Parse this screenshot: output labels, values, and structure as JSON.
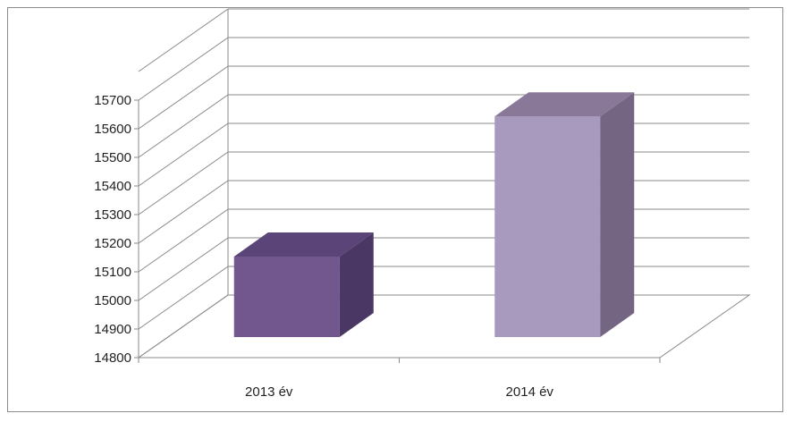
{
  "chart_data": {
    "type": "bar",
    "categories": [
      "2013 év",
      "2014 év"
    ],
    "values": [
      15150,
      15640
    ],
    "ylim": [
      14800,
      15700
    ],
    "yticks": [
      14800,
      14900,
      15000,
      15100,
      15200,
      15300,
      15400,
      15500,
      15600,
      15700
    ],
    "title": "",
    "xlabel": "",
    "ylabel": "",
    "grid": true,
    "legend": "none",
    "bar_colors": [
      "#72578f",
      "#a899bf"
    ],
    "bar_side_colors": [
      "#4a3764",
      "#746582"
    ],
    "bar_top_colors": [
      "#5a4478",
      "#8a7898"
    ]
  }
}
